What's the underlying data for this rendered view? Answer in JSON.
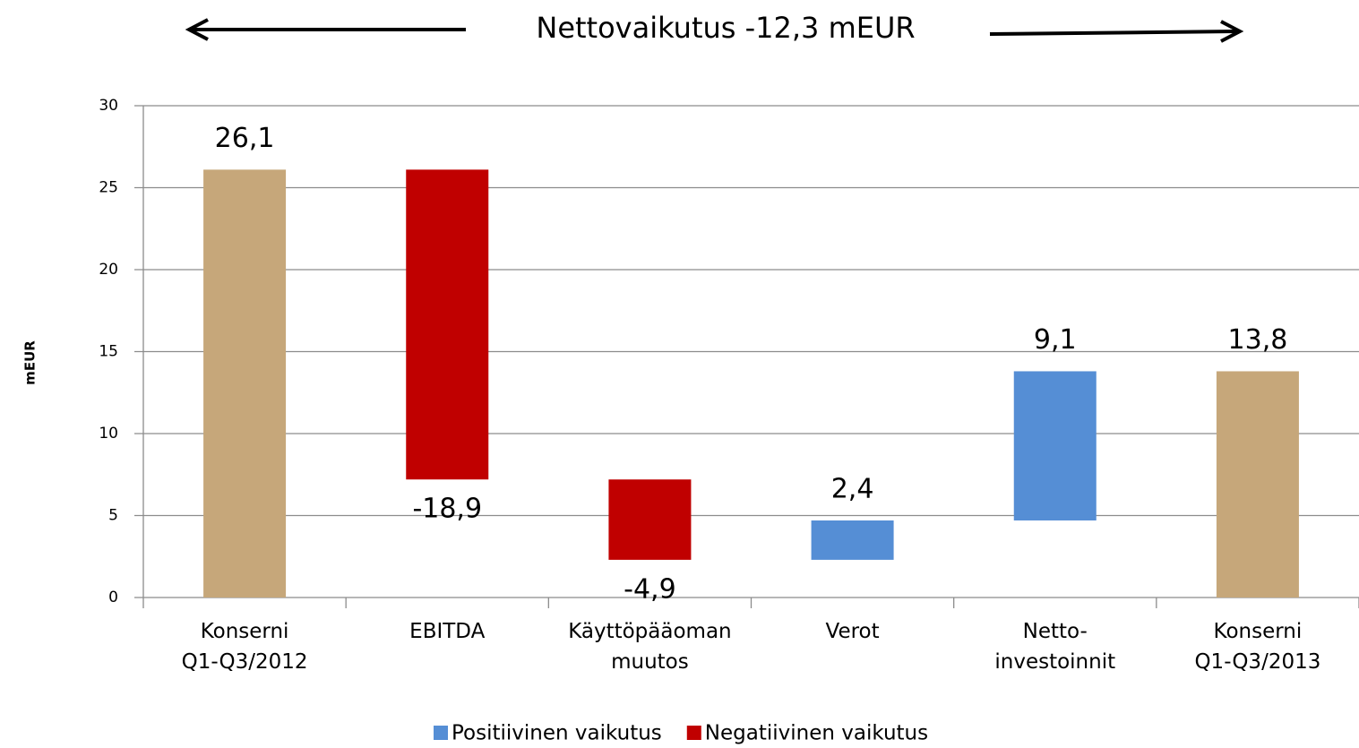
{
  "chart_data": {
    "type": "waterfall",
    "title": "Nettovaikutus -12,3 mEUR",
    "y_label": "mEUR",
    "categories": [
      "Konserni\nQ1-Q3/2012",
      "EBITDA",
      "Käyttöpääoman\nmuutos",
      "Verot",
      "Netto-\ninvestoinnit",
      "Konserni\nQ1-Q3/2013"
    ],
    "values": [
      26.1,
      -18.9,
      -4.9,
      2.4,
      9.1,
      13.8
    ],
    "value_labels": [
      "26,1",
      "-18,9",
      "-4,9",
      "2,4",
      "9,1",
      "13,8"
    ],
    "is_total": [
      true,
      false,
      false,
      false,
      false,
      true
    ],
    "total_color": "#c6a77a",
    "legend": [
      {
        "name": "Positiivinen vaikutus",
        "color": "#558ed5"
      },
      {
        "name": "Negatiivinen vaikutus",
        "color": "#c00000"
      }
    ],
    "ylim": [
      0,
      30
    ],
    "yticks": [
      0,
      5,
      10,
      15,
      20,
      25,
      30
    ],
    "grid": true
  }
}
